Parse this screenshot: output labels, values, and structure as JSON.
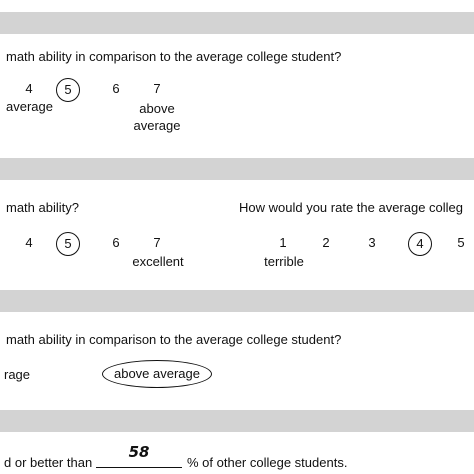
{
  "sections": {
    "q1": {
      "question": "math ability in comparison to the average college student?",
      "scale": [
        "4",
        "5",
        "6",
        "7"
      ],
      "circled": "5",
      "anchor_mid": "average",
      "anchor_high_1": "above",
      "anchor_high_2": "average"
    },
    "q2": {
      "left_question": "math ability?",
      "left_scale": [
        "4",
        "5",
        "6",
        "7"
      ],
      "left_circled": "5",
      "left_anchor_high": "excellent",
      "right_question": "How would you rate the average colleg",
      "right_scale": [
        "1",
        "2",
        "3",
        "4",
        "5"
      ],
      "right_circled": "4",
      "right_anchor_low": "terrible"
    },
    "q3": {
      "question": "math ability in comparison to the average college student?",
      "option_left": "rage",
      "option_selected": "above average"
    },
    "q4": {
      "prefix": "d or better than",
      "answer": "58",
      "suffix": "% of other college students."
    }
  }
}
